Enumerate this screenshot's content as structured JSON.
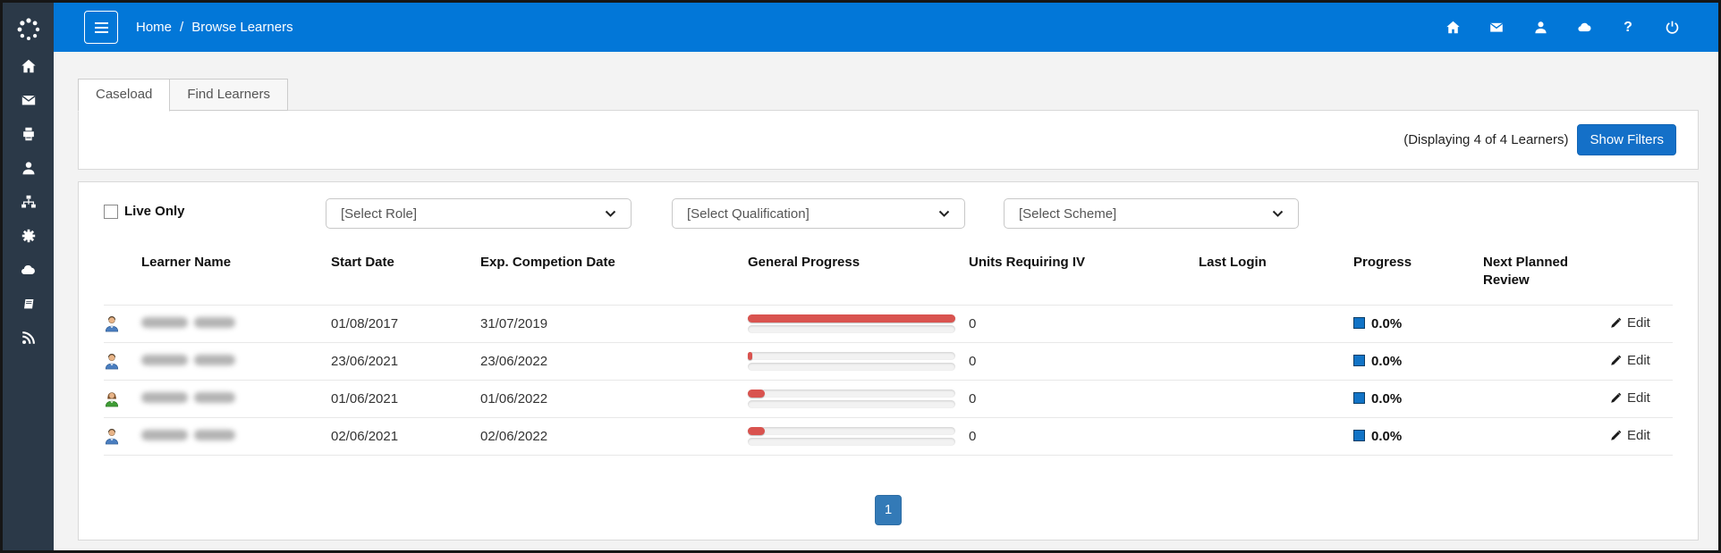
{
  "colors": {
    "topbar": "#0277d8",
    "sidebar": "#2b3948",
    "danger_bar": "#d9534f",
    "pager_active": "#337ab7",
    "show_filters_button": "#1470c8",
    "progress_square": "#1173c6"
  },
  "sidebar": {
    "icons": [
      "spinner-logo",
      "home",
      "envelope",
      "printer",
      "user",
      "sitemap",
      "gear",
      "cloud",
      "book",
      "rss"
    ]
  },
  "header": {
    "breadcrumb": {
      "items": [
        "Home",
        "Browse Learners"
      ],
      "separator": "/"
    },
    "right_icons": [
      "home",
      "envelope",
      "user",
      "cloud",
      "help",
      "power"
    ],
    "help_glyph": "?"
  },
  "tabs": [
    {
      "label": "Caseload",
      "active": true
    },
    {
      "label": "Find Learners",
      "active": false
    }
  ],
  "toolbar": {
    "displaying_text": "(Displaying 4 of 4 Learners)",
    "show_filters_label": "Show Filters"
  },
  "filters": {
    "live_only_label": "Live Only",
    "live_only_checked": false,
    "selects": [
      "[Select Role]",
      "[Select Qualification]",
      "[Select Scheme]"
    ]
  },
  "table": {
    "columns": [
      "",
      "Learner Name",
      "Start Date",
      "Exp. Competion Date",
      "General Progress",
      "Units Requiring IV",
      "Last Login",
      "Progress",
      "Next Planned Review",
      ""
    ],
    "rows": [
      {
        "avatar": "male-blue",
        "start_date": "01/08/2017",
        "exp_completion_date": "31/07/2019",
        "general_progress_pct": 100,
        "units_requiring_iv": "0",
        "last_login": "",
        "progress": "0.0%",
        "next_planned_review": "",
        "edit_label": "Edit"
      },
      {
        "avatar": "male-blue",
        "start_date": "23/06/2021",
        "exp_completion_date": "23/06/2022",
        "general_progress_pct": 2,
        "units_requiring_iv": "0",
        "last_login": "",
        "progress": "0.0%",
        "next_planned_review": "",
        "edit_label": "Edit"
      },
      {
        "avatar": "female-green",
        "start_date": "01/06/2021",
        "exp_completion_date": "01/06/2022",
        "general_progress_pct": 8,
        "units_requiring_iv": "0",
        "last_login": "",
        "progress": "0.0%",
        "next_planned_review": "",
        "edit_label": "Edit"
      },
      {
        "avatar": "male-blue",
        "start_date": "02/06/2021",
        "exp_completion_date": "02/06/2022",
        "general_progress_pct": 8,
        "units_requiring_iv": "0",
        "last_login": "",
        "progress": "0.0%",
        "next_planned_review": "",
        "edit_label": "Edit"
      }
    ]
  },
  "pagination": {
    "pages": [
      "1"
    ],
    "active_page": "1"
  }
}
